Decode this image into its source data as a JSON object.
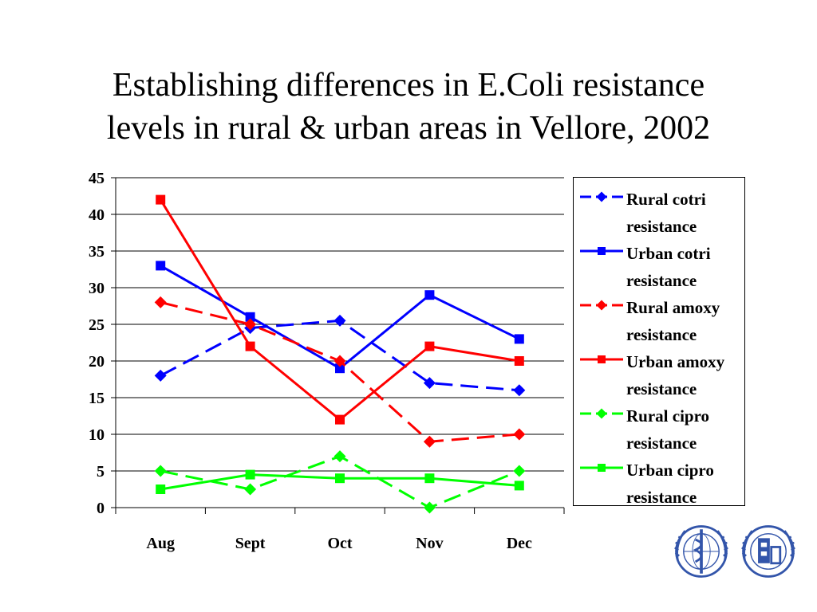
{
  "title": {
    "line1": "Establishing differences in E.Coli resistance",
    "line2": "levels in rural & urban areas in Vellore, 2002"
  },
  "chart_data": {
    "type": "line",
    "categories": [
      "Aug",
      "Sept",
      "Oct",
      "Nov",
      "Dec"
    ],
    "ylim": [
      0,
      45
    ],
    "yticks": [
      "0",
      "5",
      "10",
      "15",
      "20",
      "25",
      "30",
      "35",
      "40",
      "45"
    ],
    "grid": true,
    "legend_position": "right",
    "series": [
      {
        "name": "Rural cotri resistance",
        "color": "#0000FF",
        "marker": "diamond",
        "dash": "dashed",
        "values": [
          18,
          24.5,
          25.5,
          17,
          16
        ]
      },
      {
        "name": "Urban cotri resistance",
        "color": "#0000FF",
        "marker": "square",
        "dash": "solid",
        "values": [
          33,
          26,
          19,
          29,
          23
        ]
      },
      {
        "name": "Rural amoxy resistance",
        "color": "#FF0000",
        "marker": "diamond",
        "dash": "dashed",
        "values": [
          28,
          25,
          20,
          9,
          10
        ]
      },
      {
        "name": "Urban amoxy resistance",
        "color": "#FF0000",
        "marker": "square",
        "dash": "solid",
        "values": [
          42,
          22,
          12,
          22,
          20
        ]
      },
      {
        "name": "Rural cipro resistance",
        "color": "#00FF00",
        "marker": "diamond",
        "dash": "dashed",
        "values": [
          5,
          2.5,
          7,
          0,
          5
        ]
      },
      {
        "name": "Urban cipro resistance",
        "color": "#00FF00",
        "marker": "square",
        "dash": "solid",
        "values": [
          2.5,
          4.5,
          4,
          4,
          3
        ]
      }
    ]
  },
  "legend": {
    "items": [
      {
        "line1": "Rural cotri",
        "line2": "resistance"
      },
      {
        "line1": "Urban cotri",
        "line2": "resistance"
      },
      {
        "line1": "Rural amoxy",
        "line2": "resistance"
      },
      {
        "line1": "Urban amoxy",
        "line2": "resistance"
      },
      {
        "line1": "Rural cipro",
        "line2": "resistance"
      },
      {
        "line1": "Urban cipro",
        "line2": "resistance"
      }
    ]
  },
  "emblems": [
    {
      "name": "who-emblem-icon",
      "color": "#3355AA"
    },
    {
      "name": "who-searo-emblem-icon",
      "color": "#3355AA"
    }
  ]
}
